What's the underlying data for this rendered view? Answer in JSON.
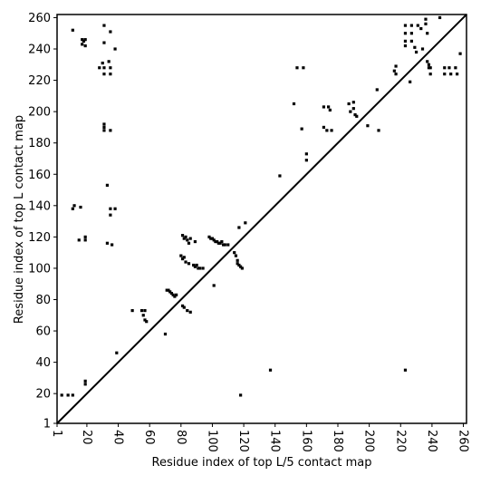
{
  "chart_data": {
    "type": "scatter",
    "xlabel": "Residue index of top L/5 contact map",
    "ylabel": "Residue index of top L contact map",
    "xlim": [
      1,
      262
    ],
    "ylim": [
      1,
      262
    ],
    "xticks": [
      1,
      20,
      40,
      60,
      80,
      100,
      120,
      140,
      160,
      180,
      200,
      220,
      240,
      260
    ],
    "yticks": [
      1,
      20,
      40,
      60,
      80,
      100,
      120,
      140,
      160,
      180,
      200,
      220,
      240,
      260
    ],
    "color": "#000000",
    "diagonal": true,
    "x": [
      11,
      17,
      18,
      19,
      19,
      17,
      28,
      30,
      31,
      31,
      35,
      35,
      34,
      31,
      35,
      38,
      31,
      31,
      31,
      31,
      35,
      33,
      35,
      35,
      38,
      11,
      12,
      16,
      15,
      19,
      19,
      33,
      36,
      39,
      49,
      55,
      57,
      56,
      57,
      58,
      70,
      71,
      72,
      73,
      74,
      75,
      76,
      77,
      81,
      82,
      84,
      86,
      80,
      81,
      82,
      83,
      85,
      81,
      82,
      83,
      84,
      85,
      86,
      88,
      89,
      90,
      91,
      92,
      94,
      89,
      98,
      99,
      100,
      101,
      102,
      103,
      104,
      105,
      106,
      107,
      108,
      110,
      101,
      114,
      115,
      116,
      117,
      118,
      119,
      116,
      117,
      121,
      4,
      8,
      11,
      19,
      19,
      118,
      137,
      223,
      143,
      152,
      154,
      158,
      157,
      160,
      160,
      171,
      171,
      173,
      174,
      175,
      176,
      187,
      188,
      190,
      191,
      192,
      190,
      199,
      205,
      206,
      216,
      217,
      217,
      223,
      223,
      223,
      223,
      227,
      227,
      227,
      229,
      230,
      231,
      233,
      234,
      226,
      236,
      236,
      237,
      237,
      238,
      238,
      239,
      239,
      245,
      248,
      248,
      251,
      252,
      255,
      256,
      258
    ],
    "y": [
      252,
      243,
      245,
      242,
      246,
      246,
      228,
      231,
      228,
      224,
      224,
      228,
      232,
      255,
      251,
      240,
      244,
      190,
      192,
      188,
      188,
      153,
      138,
      134,
      138,
      138,
      140,
      139,
      118,
      118,
      120,
      116,
      115,
      46,
      73,
      73,
      73,
      70,
      67,
      66,
      58,
      86,
      86,
      85,
      84,
      83,
      82,
      83,
      76,
      75,
      73,
      72,
      108,
      106,
      107,
      104,
      103,
      121,
      119,
      120,
      118,
      116,
      119,
      102,
      101,
      102,
      100,
      100,
      100,
      117,
      120,
      119,
      119,
      118,
      117,
      117,
      116,
      116,
      117,
      115,
      115,
      115,
      89,
      110,
      108,
      103,
      102,
      101,
      100,
      105,
      126,
      129,
      19,
      19,
      19,
      28,
      26,
      19,
      35,
      35,
      159,
      205,
      228,
      228,
      189,
      173,
      169,
      203,
      190,
      188,
      203,
      201,
      188,
      205,
      200,
      206,
      198,
      197,
      202,
      191,
      214,
      188,
      226,
      229,
      224,
      255,
      250,
      245,
      242,
      255,
      250,
      245,
      241,
      238,
      255,
      253,
      240,
      219,
      259,
      256,
      250,
      232,
      230,
      228,
      224,
      228,
      260,
      228,
      224,
      228,
      224,
      228,
      224,
      237
    ]
  }
}
